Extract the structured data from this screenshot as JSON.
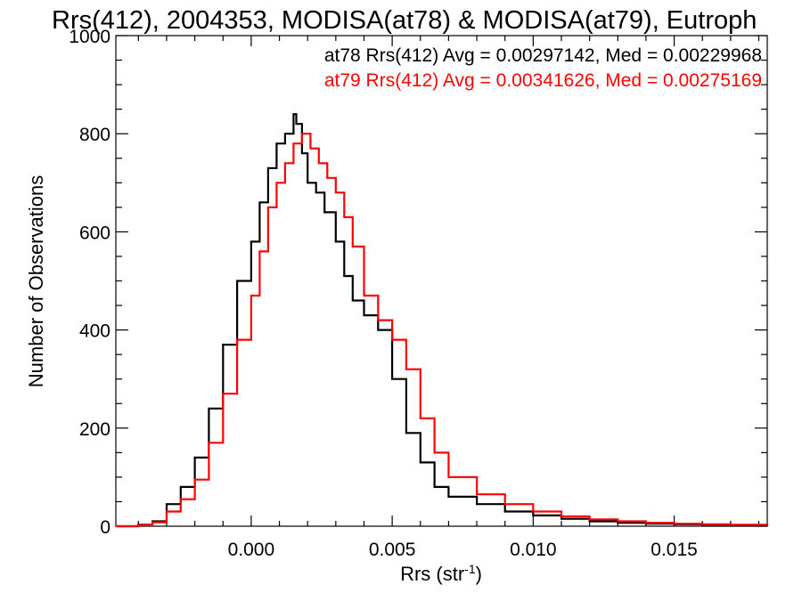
{
  "chart_data": {
    "type": "line",
    "title": "Rrs(412), 2004353, MODISA(at78) & MODISA(at79), Eutroph",
    "xlabel": "Rrs (str",
    "xlabel_sup": "-1",
    "xlabel_end": ")",
    "ylabel": "Number of Observations",
    "xlim": [
      -0.0048,
      0.0183
    ],
    "ylim": [
      0,
      1000
    ],
    "x_ticks": [
      0.0,
      0.005,
      0.01,
      0.015
    ],
    "x_tick_labels": [
      "0.000",
      "0.005",
      "0.010",
      "0.015"
    ],
    "y_ticks": [
      0,
      200,
      400,
      600,
      800,
      1000
    ],
    "y_tick_labels": [
      "0",
      "200",
      "400",
      "600",
      "800",
      "1000"
    ],
    "legend_position": "top-right",
    "legend": [
      "at78 Rrs(412) Avg = 0.00297142, Med = 0.00229968",
      "at79 Rrs(412) Avg = 0.00341626, Med = 0.00275169"
    ],
    "series": [
      {
        "color": "#000000",
        "style": "step",
        "x": [
          -0.0048,
          -0.004,
          -0.0035,
          -0.003,
          -0.0025,
          -0.002,
          -0.0015,
          -0.001,
          -0.0005,
          0.0,
          0.0003,
          0.0006,
          0.0009,
          0.0012,
          0.0015,
          0.0016,
          0.0018,
          0.002,
          0.0023,
          0.0026,
          0.003,
          0.0033,
          0.0036,
          0.004,
          0.0045,
          0.005,
          0.0055,
          0.006,
          0.0065,
          0.007,
          0.008,
          0.009,
          0.01,
          0.011,
          0.012,
          0.013,
          0.014,
          0.015,
          0.016,
          0.017,
          0.0183
        ],
        "values": [
          0,
          3,
          10,
          45,
          80,
          140,
          240,
          370,
          500,
          580,
          660,
          730,
          780,
          800,
          840,
          820,
          760,
          700,
          680,
          640,
          580,
          510,
          460,
          430,
          400,
          300,
          190,
          130,
          80,
          60,
          45,
          30,
          22,
          15,
          10,
          7,
          5,
          4,
          3,
          2,
          1
        ]
      },
      {
        "color": "#ff0000",
        "style": "step",
        "x": [
          -0.0048,
          -0.004,
          -0.0035,
          -0.003,
          -0.0025,
          -0.002,
          -0.0015,
          -0.001,
          -0.0005,
          0.0,
          0.0003,
          0.0006,
          0.0009,
          0.0012,
          0.0015,
          0.0018,
          0.0021,
          0.0024,
          0.0027,
          0.003,
          0.0033,
          0.0036,
          0.004,
          0.0045,
          0.005,
          0.0055,
          0.006,
          0.0065,
          0.007,
          0.008,
          0.009,
          0.01,
          0.011,
          0.012,
          0.013,
          0.014,
          0.015,
          0.016,
          0.017,
          0.0183
        ],
        "values": [
          0,
          2,
          8,
          30,
          55,
          95,
          170,
          270,
          380,
          470,
          560,
          650,
          700,
          740,
          780,
          800,
          770,
          740,
          710,
          680,
          630,
          570,
          470,
          420,
          380,
          320,
          220,
          150,
          100,
          65,
          45,
          30,
          20,
          14,
          10,
          7,
          5,
          4,
          3,
          2
        ]
      }
    ]
  }
}
